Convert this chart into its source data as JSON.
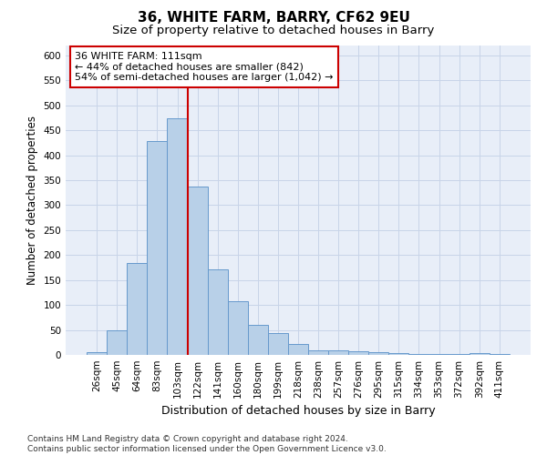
{
  "title": "36, WHITE FARM, BARRY, CF62 9EU",
  "subtitle": "Size of property relative to detached houses in Barry",
  "xlabel": "Distribution of detached houses by size in Barry",
  "ylabel": "Number of detached properties",
  "categories": [
    "26sqm",
    "45sqm",
    "64sqm",
    "83sqm",
    "103sqm",
    "122sqm",
    "141sqm",
    "160sqm",
    "180sqm",
    "199sqm",
    "218sqm",
    "238sqm",
    "257sqm",
    "276sqm",
    "295sqm",
    "315sqm",
    "334sqm",
    "353sqm",
    "372sqm",
    "392sqm",
    "411sqm"
  ],
  "values": [
    5,
    50,
    185,
    428,
    475,
    338,
    172,
    107,
    60,
    43,
    22,
    10,
    10,
    8,
    5,
    3,
    1,
    2,
    1,
    3,
    1
  ],
  "bar_color": "#b8d0e8",
  "bar_edge_color": "#6699cc",
  "bar_edge_width": 0.7,
  "property_line_x": 4.5,
  "annotation_text_line1": "36 WHITE FARM: 111sqm",
  "annotation_text_line2": "← 44% of detached houses are smaller (842)",
  "annotation_text_line3": "54% of semi-detached houses are larger (1,042) →",
  "annotation_box_facecolor": "#ffffff",
  "annotation_border_color": "#cc0000",
  "red_line_color": "#cc0000",
  "grid_color": "#c8d4e8",
  "background_color": "#e8eef8",
  "ylim": [
    0,
    620
  ],
  "yticks": [
    0,
    50,
    100,
    150,
    200,
    250,
    300,
    350,
    400,
    450,
    500,
    550,
    600
  ],
  "footer_line1": "Contains HM Land Registry data © Crown copyright and database right 2024.",
  "footer_line2": "Contains public sector information licensed under the Open Government Licence v3.0.",
  "title_fontsize": 11,
  "subtitle_fontsize": 9.5,
  "xlabel_fontsize": 9,
  "ylabel_fontsize": 8.5,
  "tick_fontsize": 7.5,
  "annotation_fontsize": 8,
  "footer_fontsize": 6.5
}
